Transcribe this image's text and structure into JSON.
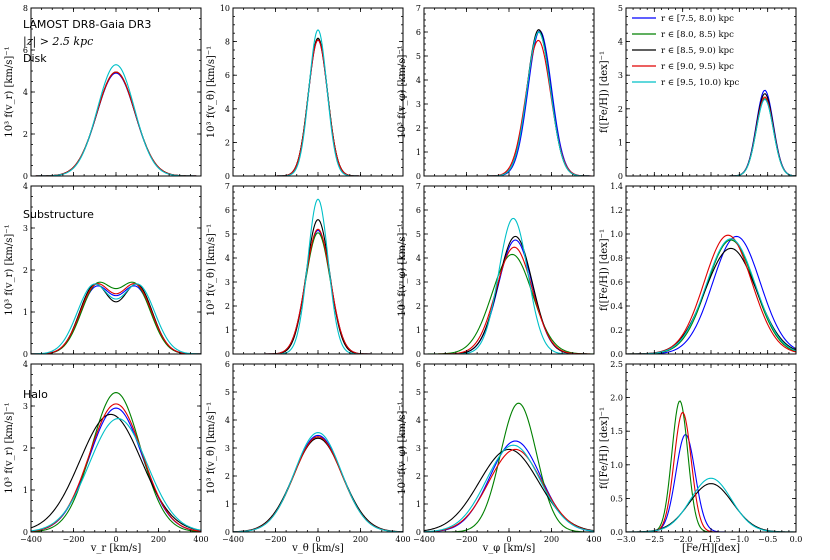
{
  "figure": {
    "title": "LAMOST DR8-Gaia DR3",
    "cut_label": "|z| > 2.5 kpc",
    "row_labels": [
      "Disk",
      "Substructure",
      "Halo"
    ]
  },
  "colors": {
    "r1": "#0000ff",
    "r2": "#008000",
    "r3": "#000000",
    "r4": "#e00000",
    "r5": "#00c0c8"
  },
  "legend": {
    "position": "top-right",
    "entries": [
      {
        "key": "r1",
        "label": "r ∈ [7.5, 8.0) kpc"
      },
      {
        "key": "r2",
        "label": "r ∈ [8.0, 8.5) kpc"
      },
      {
        "key": "r3",
        "label": "r ∈ [8.5, 9.0) kpc"
      },
      {
        "key": "r4",
        "label": "r ∈ [9.0, 9.5) kpc"
      },
      {
        "key": "r5",
        "label": "r ∈ [9.5, 10.0) kpc"
      }
    ]
  },
  "xlabels": [
    "v_r [km/s]",
    "v_θ [km/s]",
    "v_φ [km/s]",
    "[Fe/H][dex]"
  ],
  "ylabels": [
    [
      "10³ f(v_r) [km/s]⁻¹",
      "10³ f(v_θ) [km/s]⁻¹",
      "10³ f(v_φ) [km/s]⁻¹",
      "f([Fe/H]) [dex]⁻¹"
    ],
    [
      "10³ f(v_r) [km/s]⁻¹",
      "10³ f(v_θ) [km/s]⁻¹",
      "10³ f(v_φ) [km/s]⁻¹",
      "f([Fe/H]) [dex]⁻¹"
    ],
    [
      "10³ f(v_r) [km/s]⁻¹",
      "10³ f(v_θ) [km/s]⁻¹",
      "10³ f(v_φ) [km/s]⁻¹",
      "f([Fe/H]) [dex]⁻¹"
    ]
  ],
  "chart_data": {
    "type": "line",
    "x_ranges": [
      [
        -400,
        400
      ],
      [
        -400,
        400
      ],
      [
        -400,
        400
      ],
      [
        -3.0,
        0.0
      ]
    ],
    "x_ticks": [
      [
        -400,
        -200,
        0,
        200,
        400
      ],
      [
        -400,
        -200,
        0,
        200,
        400
      ],
      [
        -400,
        -200,
        0,
        200,
        400
      ],
      [
        -3.0,
        -2.5,
        -2.0,
        -1.5,
        -1.0,
        -0.5,
        0.0
      ]
    ],
    "x_tick_labels": [
      [
        "−400",
        "−200",
        "0",
        "200",
        "400"
      ],
      [
        "−400",
        "−200",
        "0",
        "200",
        "400"
      ],
      [
        "−400",
        "−200",
        "0",
        "200",
        "400"
      ],
      [
        "−3.0",
        "−2.5",
        "−2.0",
        "−1.5",
        "−1.0",
        "−0.5",
        "0.0"
      ]
    ],
    "y_ranges": [
      [
        [
          0,
          8
        ],
        [
          0,
          10
        ],
        [
          0,
          7
        ],
        [
          0,
          5
        ]
      ],
      [
        [
          0,
          4
        ],
        [
          0,
          7
        ],
        [
          0,
          7
        ],
        [
          0,
          1.4
        ]
      ],
      [
        [
          0,
          4
        ],
        [
          0,
          6
        ],
        [
          0,
          6
        ],
        [
          0,
          2.5
        ]
      ]
    ],
    "y_tick_labels": [
      [
        [
          "0",
          "2",
          "4",
          "6",
          "8"
        ],
        [
          "0",
          "2",
          "4",
          "6",
          "8",
          "10"
        ],
        [
          "0",
          "1",
          "2",
          "3",
          "4",
          "5",
          "6",
          "7"
        ],
        [
          "0",
          "1",
          "2",
          "3",
          "4",
          "5"
        ]
      ],
      [
        [
          "0",
          "1",
          "2",
          "3",
          "4"
        ],
        [
          "0",
          "1",
          "2",
          "3",
          "4",
          "5",
          "6",
          "7"
        ],
        [
          "0",
          "1",
          "2",
          "3",
          "4",
          "5",
          "6",
          "7"
        ],
        [
          "0.0",
          "0.2",
          "0.4",
          "0.6",
          "0.8",
          "1.0",
          "1.2",
          "1.4"
        ]
      ],
      [
        [
          "0",
          "1",
          "2",
          "3",
          "4"
        ],
        [
          "0",
          "1",
          "2",
          "3",
          "4",
          "5",
          "6"
        ],
        [
          "0",
          "1",
          "2",
          "3",
          "4",
          "5",
          "6"
        ],
        [
          "0.0",
          "0.5",
          "1.0",
          "1.5",
          "2.0",
          "2.5"
        ]
      ]
    ],
    "series_order": [
      "r1",
      "r2",
      "r3",
      "r4",
      "r5"
    ],
    "panels": [
      [
        {
          "components": {
            "r1": [
              [
                4.9,
                0,
                90
              ]
            ],
            "r2": [
              [
                4.95,
                0,
                90
              ]
            ],
            "r3": [
              [
                4.95,
                0,
                90
              ]
            ],
            "r4": [
              [
                4.95,
                0,
                90
              ]
            ],
            "r5": [
              [
                5.3,
                0,
                87
              ]
            ]
          }
        },
        {
          "components": {
            "r1": [
              [
                8.1,
                0,
                45
              ]
            ],
            "r2": [
              [
                8.2,
                0,
                45
              ]
            ],
            "r3": [
              [
                8.2,
                0,
                45
              ]
            ],
            "r4": [
              [
                8.1,
                0,
                45
              ]
            ],
            "r5": [
              [
                8.7,
                0,
                42
              ]
            ]
          }
        },
        {
          "components": {
            "r1": [
              [
                6.05,
                145,
                55
              ]
            ],
            "r2": [
              [
                6.0,
                140,
                55
              ]
            ],
            "r3": [
              [
                6.1,
                140,
                55
              ]
            ],
            "r4": [
              [
                5.65,
                138,
                58
              ]
            ],
            "r5": [
              [
                6.0,
                140,
                55
              ]
            ]
          }
        },
        {
          "components": {
            "r1": [
              [
                2.55,
                -0.55,
                0.15
              ]
            ],
            "r2": [
              [
                2.3,
                -0.55,
                0.15
              ]
            ],
            "r3": [
              [
                2.45,
                -0.55,
                0.15
              ]
            ],
            "r4": [
              [
                2.35,
                -0.55,
                0.15
              ]
            ],
            "r5": [
              [
                2.28,
                -0.55,
                0.15
              ]
            ]
          }
        }
      ],
      [
        {
          "components": {
            "r1": [
              [
                1.55,
                -95,
                75
              ],
              [
                1.55,
                95,
                75
              ]
            ],
            "r2": [
              [
                1.6,
                -90,
                75
              ],
              [
                1.6,
                90,
                75
              ]
            ],
            "r3": [
              [
                1.63,
                -100,
                72
              ],
              [
                1.63,
                100,
                72
              ]
            ],
            "r4": [
              [
                1.6,
                -95,
                75
              ],
              [
                1.6,
                95,
                75
              ]
            ],
            "r5": [
              [
                1.62,
                -105,
                78
              ],
              [
                1.62,
                105,
                78
              ]
            ]
          }
        },
        {
          "components": {
            "r1": [
              [
                5.15,
                0,
                58
              ]
            ],
            "r2": [
              [
                5.05,
                0,
                58
              ]
            ],
            "r3": [
              [
                5.6,
                0,
                55
              ]
            ],
            "r4": [
              [
                5.2,
                0,
                58
              ]
            ],
            "r5": [
              [
                6.45,
                0,
                48
              ]
            ]
          }
        },
        {
          "components": {
            "r1": [
              [
                4.75,
                30,
                80
              ]
            ],
            "r2": [
              [
                4.15,
                15,
                95
              ]
            ],
            "r3": [
              [
                4.9,
                30,
                80
              ]
            ],
            "r4": [
              [
                4.45,
                25,
                85
              ]
            ],
            "r5": [
              [
                5.65,
                20,
                68
              ]
            ]
          }
        },
        {
          "components": {
            "r1": [
              [
                0.98,
                -1.05,
                0.42
              ]
            ],
            "r2": [
              [
                0.95,
                -1.15,
                0.42
              ]
            ],
            "r3": [
              [
                0.88,
                -1.15,
                0.45
              ]
            ],
            "r4": [
              [
                0.99,
                -1.2,
                0.42
              ]
            ],
            "r5": [
              [
                0.96,
                -1.15,
                0.43
              ]
            ]
          }
        }
      ],
      [
        {
          "components": {
            "r1": [
              [
                2.95,
                0,
                125
              ]
            ],
            "r2": [
              [
                3.32,
                0,
                115
              ]
            ],
            "r3": [
              [
                2.8,
                -25,
                145
              ]
            ],
            "r4": [
              [
                3.05,
                0,
                125
              ]
            ],
            "r5": [
              [
                2.7,
                10,
                135
              ]
            ]
          }
        },
        {
          "components": {
            "r1": [
              [
                3.45,
                0,
                112
              ]
            ],
            "r2": [
              [
                3.4,
                0,
                112
              ]
            ],
            "r3": [
              [
                3.35,
                0,
                115
              ]
            ],
            "r4": [
              [
                3.4,
                0,
                112
              ]
            ],
            "r5": [
              [
                3.55,
                0,
                110
              ]
            ]
          }
        },
        {
          "components": {
            "r1": [
              [
                3.25,
                30,
                120
              ]
            ],
            "r2": [
              [
                4.6,
                45,
                85
              ]
            ],
            "r3": [
              [
                2.95,
                0,
                140
              ]
            ],
            "r4": [
              [
                2.95,
                30,
                125
              ]
            ],
            "r5": [
              [
                3.1,
                20,
                125
              ]
            ]
          }
        },
        {
          "components": {
            "r1": [
              [
                1.45,
                -1.95,
                0.17
              ]
            ],
            "r2": [
              [
                1.95,
                -2.05,
                0.14
              ]
            ],
            "r3": [
              [
                0.72,
                -1.5,
                0.38
              ]
            ],
            "r4": [
              [
                1.78,
                -2.0,
                0.15
              ]
            ],
            "r5": [
              [
                0.8,
                -1.5,
                0.36
              ]
            ]
          }
        }
      ]
    ]
  }
}
